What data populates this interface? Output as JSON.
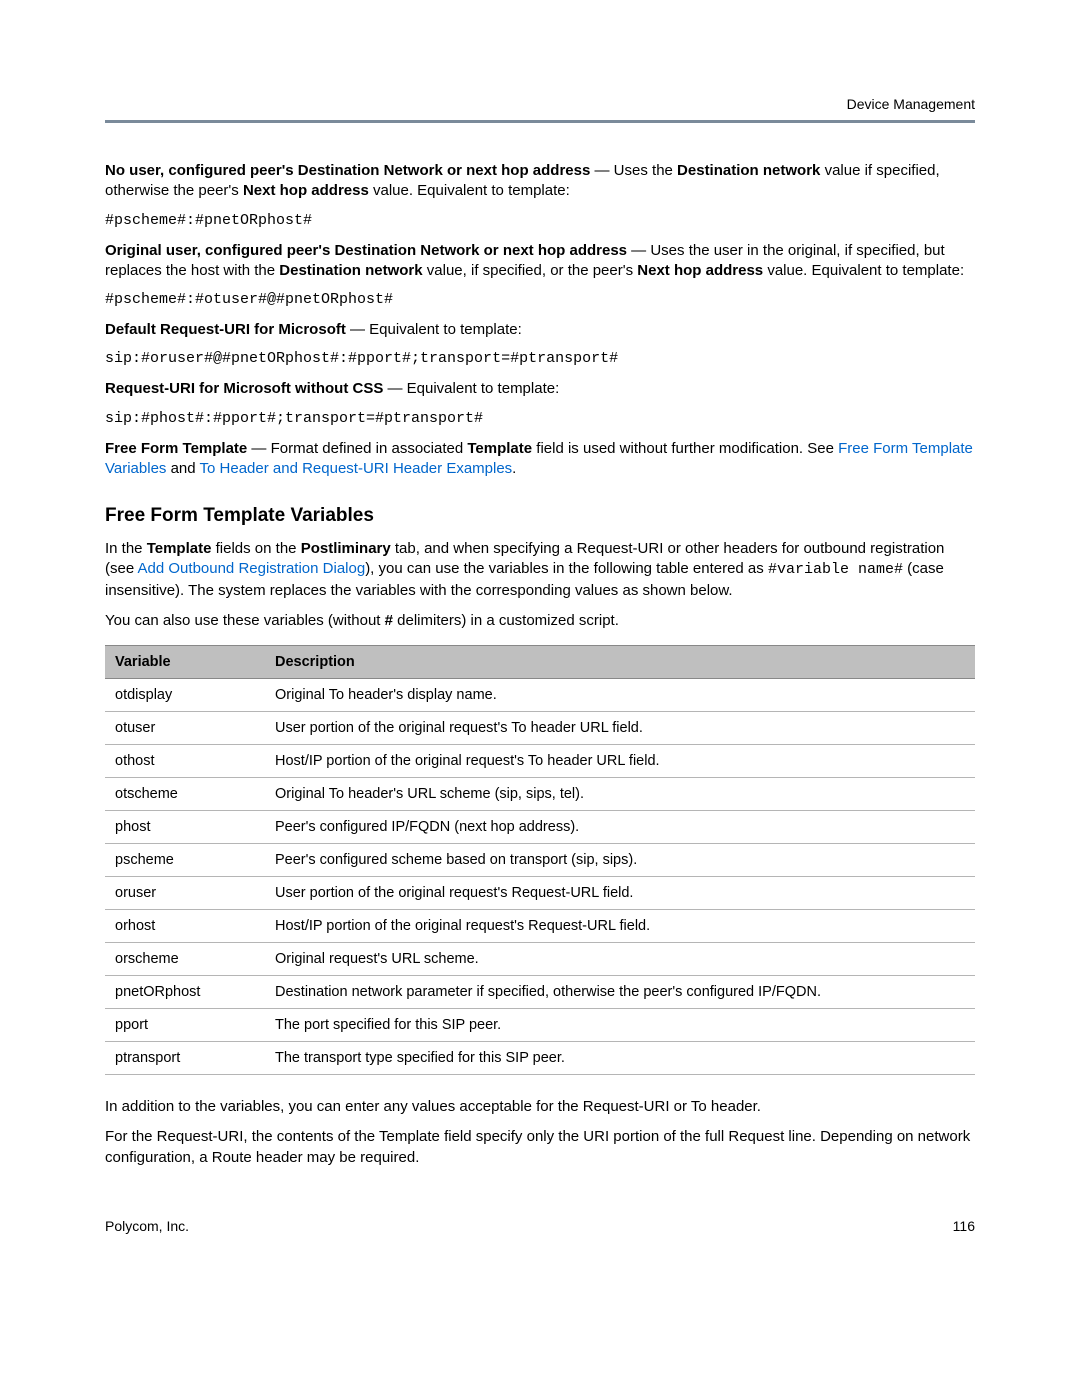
{
  "header": {
    "title": "Device Management"
  },
  "body": {
    "p1": {
      "lead_bold": "No user, configured peer's Destination Network or next hop address",
      "dash_uses_the": " — Uses the ",
      "dest_net_bold": "Destination network",
      "after_dest": " value if specified, otherwise the peer's ",
      "next_hop_bold": "Next hop address",
      "tail": " value. Equivalent to template:"
    },
    "code1": "#pscheme#:#pnetORphost#",
    "p2": {
      "lead_bold": "Original user, configured peer's Destination Network or next hop address",
      "after_lead": " — Uses the user in the original, if specified, but replaces the host with the ",
      "dest_net_bold": "Destination network",
      "mid": " value, if specified, or the peer's ",
      "next_hop_bold": "Next hop address",
      "tail": " value. Equivalent to template:"
    },
    "code2": "#pscheme#:#otuser#@#pnetORphost#",
    "p3": {
      "lead_bold": "Default Request-URI for Microsoft",
      "tail": " — Equivalent to template:"
    },
    "code3": "sip:#oruser#@#pnetORphost#:#pport#;transport=#ptransport#",
    "p4": {
      "lead_bold": "Request-URI for Microsoft without CSS",
      "tail": " — Equivalent to template:"
    },
    "code4": "sip:#phost#:#pport#;transport=#ptransport#",
    "p5": {
      "lead_bold": "Free Form Template",
      "mid1": " — Format defined in associated ",
      "tpl_bold": "Template",
      "mid2": " field is used without further modification. See ",
      "link1": "Free Form Template Variables",
      "and": " and ",
      "link2": "To Header and Request-URI Header Examples",
      "period": "."
    },
    "section_heading": "Free Form Template Variables",
    "p6": {
      "t1": "In the ",
      "tpl_bold": "Template",
      "t2": " fields on the ",
      "post_bold": "Postliminary",
      "t3": " tab, and when specifying a Request-URI or other headers for outbound registration (see ",
      "link": "Add Outbound Registration Dialog",
      "t4": "), you can use the variables in the following table entered as ",
      "code": "#variable name#",
      "t5": " (case insensitive). The system replaces the variables with the corresponding values as shown below."
    },
    "p7": {
      "t1": "You can also use these variables (without ",
      "hash_bold": "#",
      "t2": " delimiters) in a customized script."
    },
    "table": {
      "col_variable": "Variable",
      "col_description": "Description",
      "rows": [
        {
          "v": "otdisplay",
          "d": "Original To header's display name."
        },
        {
          "v": "otuser",
          "d": "User portion of the original request's To header URL field."
        },
        {
          "v": "othost",
          "d": "Host/IP portion of the original request's To header URL field."
        },
        {
          "v": "otscheme",
          "d": "Original To header's URL scheme (sip, sips, tel)."
        },
        {
          "v": "phost",
          "d": "Peer's configured IP/FQDN (next hop address)."
        },
        {
          "v": "pscheme",
          "d": "Peer's configured scheme based on transport (sip, sips)."
        },
        {
          "v": "oruser",
          "d": "User portion of the original request's Request-URL field."
        },
        {
          "v": "orhost",
          "d": "Host/IP portion of the original request's Request-URL field."
        },
        {
          "v": "orscheme",
          "d": "Original request's URL scheme."
        },
        {
          "v": "pnetORphost",
          "d": "Destination network parameter if specified, otherwise the peer's configured IP/FQDN."
        },
        {
          "v": "pport",
          "d": "The port specified for this SIP peer."
        },
        {
          "v": "ptransport",
          "d": "The transport type specified for this SIP peer."
        }
      ]
    },
    "p8": "In addition to the variables, you can enter any values acceptable for the Request-URI or To header.",
    "p9": "For the Request-URI, the contents of the Template field specify only the URI portion of the full Request line. Depending on network configuration, a Route header may be required."
  },
  "footer": {
    "company": "Polycom, Inc.",
    "page_number": "116"
  }
}
